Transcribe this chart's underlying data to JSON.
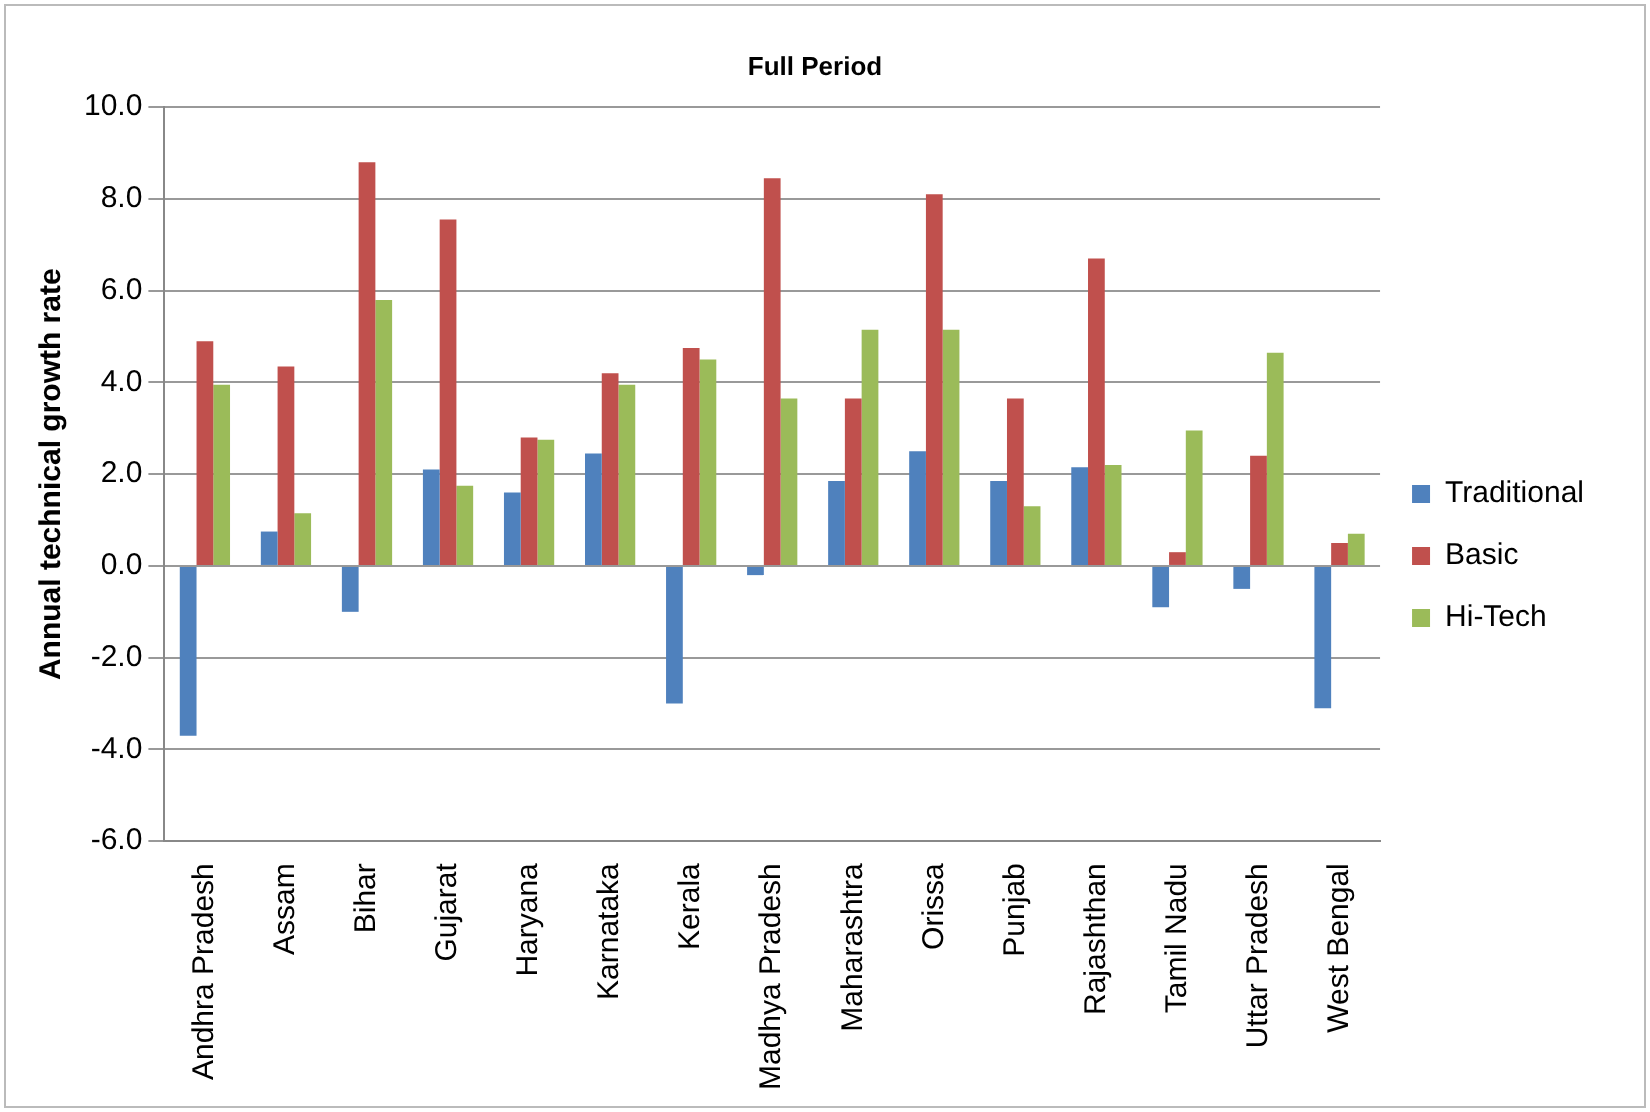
{
  "chart_data": {
    "type": "bar",
    "title": "Full Period",
    "ylabel": "Annual technical growth rate",
    "categories": [
      "Andhra Pradesh",
      "Assam",
      "Bihar",
      "Gujarat",
      "Haryana",
      "Karnataka",
      "Kerala",
      "Madhya Pradesh",
      "Maharashtra",
      "Orissa",
      "Punjab",
      "Rajashthan",
      "Tamil Nadu",
      "Uttar Pradesh",
      "West Bengal"
    ],
    "series": [
      {
        "name": "Traditional",
        "color": "#4f81bd",
        "values": [
          -3.7,
          0.75,
          -1.0,
          2.1,
          1.6,
          2.45,
          -3.0,
          -0.2,
          1.85,
          2.5,
          1.85,
          2.15,
          -0.9,
          -0.5,
          -3.1
        ]
      },
      {
        "name": "Basic",
        "color": "#c0504d",
        "values": [
          4.9,
          4.35,
          8.8,
          7.55,
          2.8,
          4.2,
          4.75,
          8.45,
          3.65,
          8.1,
          3.65,
          6.7,
          0.3,
          2.4,
          0.5
        ]
      },
      {
        "name": "Hi-Tech",
        "color": "#9bbb59",
        "values": [
          3.95,
          1.15,
          5.8,
          1.75,
          2.75,
          3.95,
          4.5,
          3.65,
          5.15,
          5.15,
          1.3,
          2.2,
          2.95,
          4.65,
          0.7
        ]
      }
    ],
    "ylim": [
      -6,
      10
    ],
    "yticks": [
      {
        "value": -6,
        "label": "-6.0"
      },
      {
        "value": -4,
        "label": "-4.0"
      },
      {
        "value": -2,
        "label": "-2.0"
      },
      {
        "value": 0,
        "label": "0.0"
      },
      {
        "value": 2,
        "label": "2.0"
      },
      {
        "value": 4,
        "label": "4.0"
      },
      {
        "value": 6,
        "label": "6.0"
      },
      {
        "value": 8,
        "label": "8.0"
      },
      {
        "value": 10,
        "label": "10.0"
      }
    ],
    "grid": "y",
    "legend": "right"
  }
}
